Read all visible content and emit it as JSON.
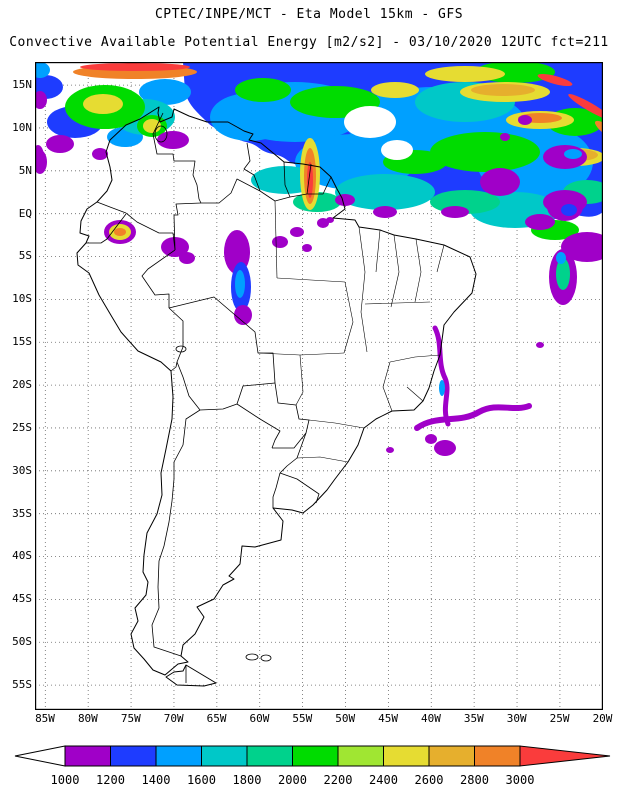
{
  "header": {
    "title_line1": "CPTEC/INPE/MCT - Eta Model 15km - GFS",
    "title_line2": "Convective Available Potential Energy [m2/s2] - 03/10/2020 12UTC fct=211"
  },
  "meta": {
    "institution": "CPTEC/INPE/MCT",
    "model": "Eta Model 15km",
    "boundary_condition": "GFS",
    "variable": "Convective Available Potential Energy",
    "units": "m2/s2",
    "date": "03/10/2020",
    "cycle": "12UTC",
    "forecast": "fct=211"
  },
  "map": {
    "lat_labels": [
      "15N",
      "10N",
      "5N",
      "EQ",
      "5S",
      "10S",
      "15S",
      "20S",
      "25S",
      "30S",
      "35S",
      "40S",
      "45S",
      "50S",
      "55S"
    ],
    "lon_labels": [
      "85W",
      "80W",
      "75W",
      "70W",
      "65W",
      "60W",
      "55W",
      "50W",
      "45W",
      "40W",
      "35W",
      "30W",
      "25W",
      "20W"
    ]
  },
  "colorbar": {
    "tick_labels": [
      "1000",
      "1200",
      "1400",
      "1600",
      "1800",
      "2000",
      "2200",
      "2400",
      "2600",
      "2800",
      "3000"
    ],
    "segment_colors": [
      "#a000c8",
      "#1e3cff",
      "#00a0ff",
      "#00c8c8",
      "#00d28c",
      "#00dc00",
      "#a0e632",
      "#e6dc32",
      "#e6af2d",
      "#f08228"
    ],
    "left_arrow_color": "#ffffff",
    "right_arrow_color": "#fa3c3c"
  },
  "chart_data": {
    "type": "heatmap",
    "title": "Convective Available Potential Energy [m2/s2]",
    "colorbar_values": [
      1000,
      1200,
      1400,
      1600,
      1800,
      2000,
      2200,
      2400,
      2600,
      2800,
      3000
    ],
    "x_ticks": [
      "85W",
      "80W",
      "75W",
      "70W",
      "65W",
      "60W",
      "55W",
      "50W",
      "45W",
      "40W",
      "35W",
      "30W",
      "25W",
      "20W"
    ],
    "y_ticks": [
      "15N",
      "10N",
      "5N",
      "EQ",
      "5S",
      "10S",
      "15S",
      "20S",
      "25S",
      "30S",
      "35S",
      "40S",
      "45S",
      "50S",
      "55S"
    ]
  }
}
